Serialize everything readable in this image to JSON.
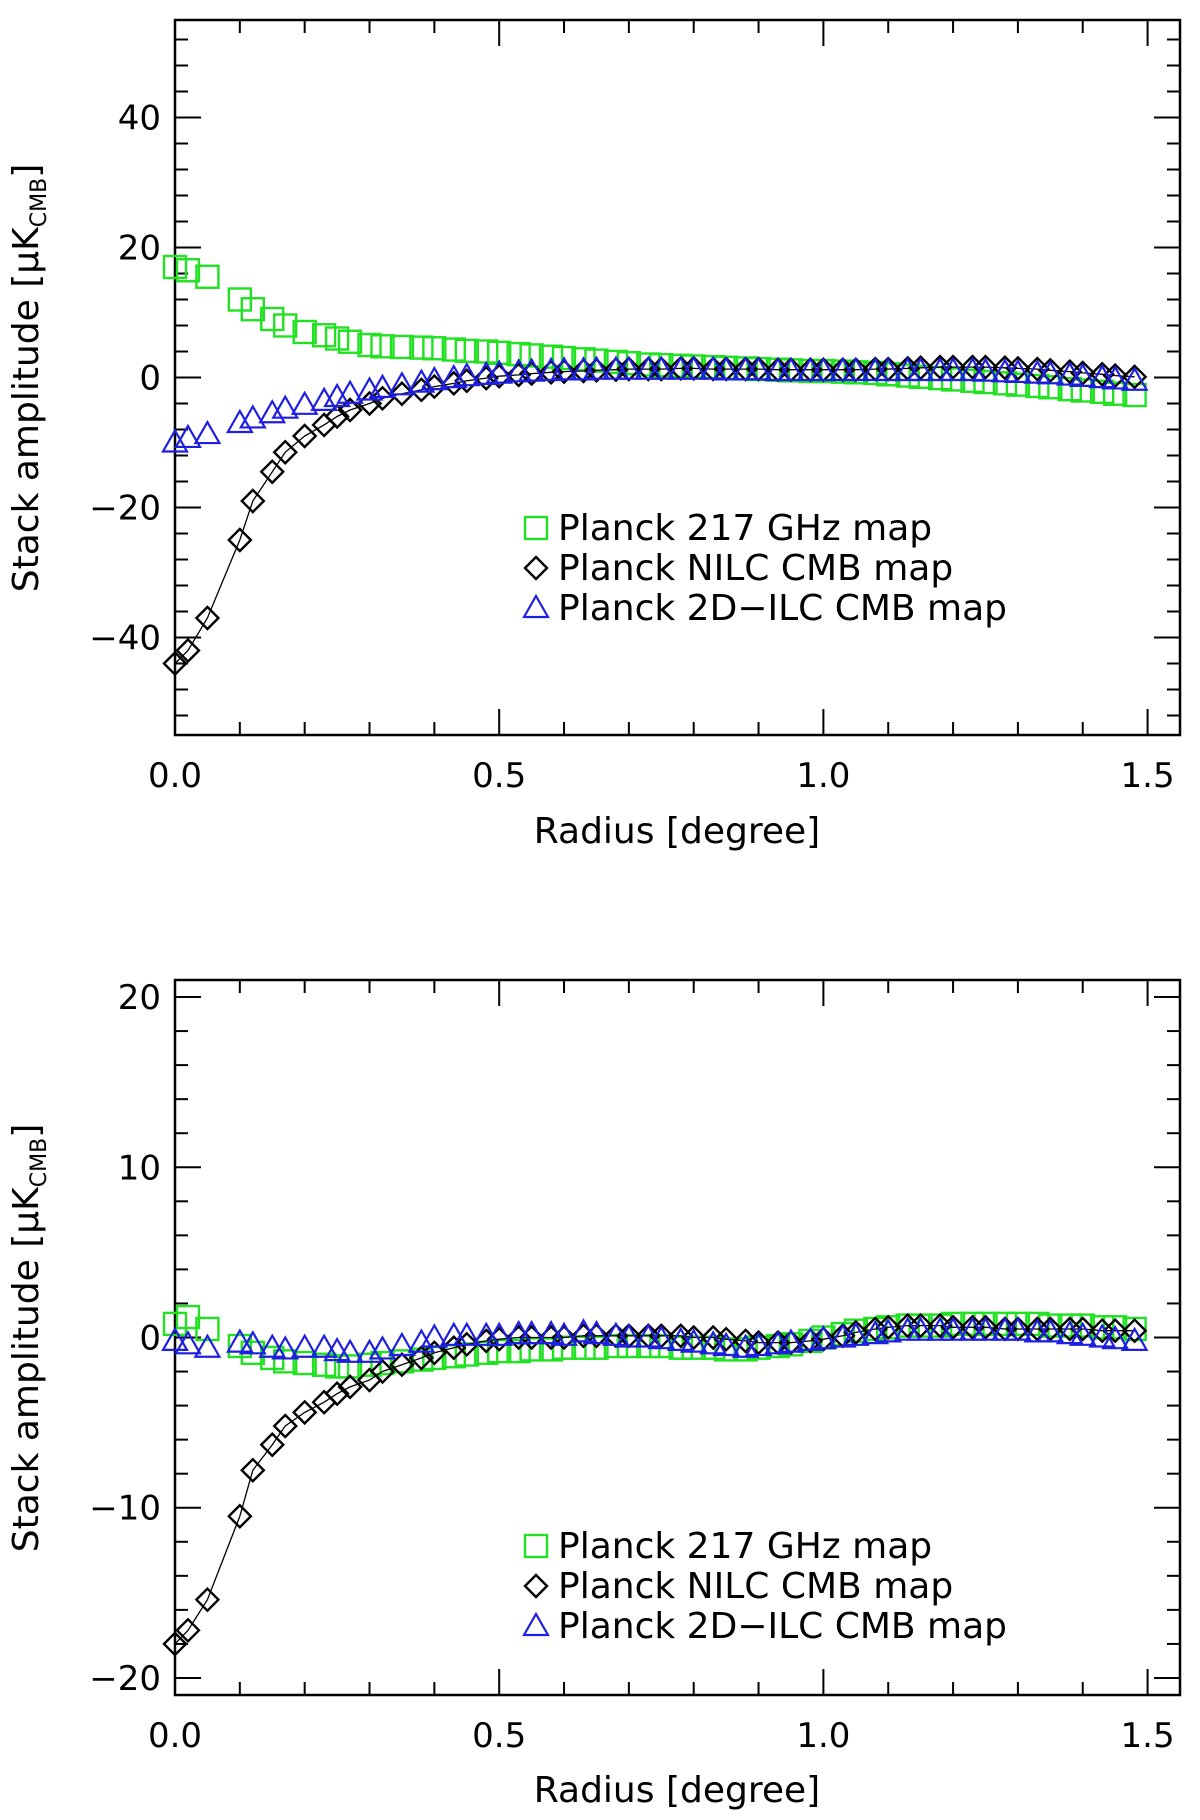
{
  "colors": {
    "green": "#22e122",
    "black": "#000000",
    "blue": "#1f1fe0",
    "frame": "#000000"
  },
  "chart_data": [
    {
      "type": "scatter",
      "xlabel": "Radius [degree]",
      "ylabel": "Stack amplitude [μK",
      "ylabel_sub": "CMB",
      "ylabel_close": "]",
      "xlim": [
        0.0,
        1.55
      ],
      "ylim": [
        -55,
        55
      ],
      "xticks": [
        0.0,
        0.5,
        1.0,
        1.5
      ],
      "xtick_labels": [
        "0.0",
        "0.5",
        "1.0",
        "1.5"
      ],
      "yticks": [
        -40,
        -20,
        0,
        20,
        40
      ],
      "ytick_labels": [
        "−40",
        "−20",
        "0",
        "20",
        "40"
      ],
      "x": [
        0.0,
        0.02,
        0.05,
        0.1,
        0.12,
        0.15,
        0.17,
        0.2,
        0.23,
        0.25,
        0.27,
        0.3,
        0.32,
        0.35,
        0.38,
        0.4,
        0.43,
        0.45,
        0.48,
        0.5,
        0.53,
        0.55,
        0.58,
        0.6,
        0.63,
        0.65,
        0.68,
        0.7,
        0.73,
        0.75,
        0.78,
        0.8,
        0.83,
        0.85,
        0.88,
        0.9,
        0.93,
        0.95,
        0.98,
        1.0,
        1.03,
        1.05,
        1.08,
        1.1,
        1.13,
        1.15,
        1.18,
        1.2,
        1.23,
        1.25,
        1.28,
        1.3,
        1.33,
        1.35,
        1.38,
        1.4,
        1.43,
        1.45,
        1.48
      ],
      "legend": [
        {
          "label": "Planck 217 GHz map",
          "marker": "square",
          "color": "#22e122"
        },
        {
          "label": "Planck NILC CMB map",
          "marker": "diamond",
          "color": "#000000"
        },
        {
          "label": "Planck 2D−ILC CMB map",
          "marker": "triangle",
          "color": "#1f1fe0"
        }
      ],
      "series": [
        {
          "name": "Planck 217 GHz map",
          "marker": "square",
          "color": "#22e122",
          "line": false,
          "values": [
            17.0,
            16.5,
            15.5,
            12.0,
            10.5,
            9.0,
            8.0,
            7.0,
            6.5,
            6.0,
            5.5,
            5.0,
            4.8,
            4.7,
            4.6,
            4.5,
            4.3,
            4.1,
            4.0,
            3.8,
            3.6,
            3.4,
            3.2,
            3.0,
            2.8,
            2.6,
            2.4,
            2.2,
            2.0,
            1.9,
            1.8,
            1.7,
            1.6,
            1.5,
            1.4,
            1.3,
            1.2,
            1.1,
            1.0,
            1.0,
            0.9,
            0.8,
            0.7,
            0.5,
            0.3,
            0.1,
            -0.1,
            -0.3,
            -0.5,
            -0.7,
            -0.9,
            -1.1,
            -1.3,
            -1.5,
            -1.8,
            -2.0,
            -2.2,
            -2.5,
            -2.7
          ]
        },
        {
          "name": "Planck NILC CMB map",
          "marker": "diamond",
          "color": "#000000",
          "line": true,
          "values": [
            -44.0,
            -42.0,
            -37.0,
            -25.0,
            -19.0,
            -14.5,
            -11.5,
            -9.0,
            -7.3,
            -6.0,
            -5.0,
            -4.0,
            -3.2,
            -2.5,
            -1.9,
            -1.4,
            -0.9,
            -0.5,
            -0.1,
            0.2,
            0.4,
            0.6,
            0.8,
            0.9,
            1.0,
            1.1,
            1.2,
            1.3,
            1.3,
            1.3,
            1.4,
            1.4,
            1.3,
            1.3,
            1.3,
            1.3,
            1.2,
            1.2,
            1.2,
            1.2,
            1.2,
            1.2,
            1.3,
            1.3,
            1.4,
            1.5,
            1.6,
            1.6,
            1.6,
            1.6,
            1.5,
            1.4,
            1.3,
            1.1,
            0.9,
            0.7,
            0.5,
            0.3,
            0.1
          ]
        },
        {
          "name": "Planck 2D−ILC CMB map",
          "marker": "triangle",
          "color": "#1f1fe0",
          "line": false,
          "values": [
            -10.0,
            -9.3,
            -8.7,
            -7.0,
            -6.3,
            -5.5,
            -4.8,
            -4.2,
            -3.6,
            -3.0,
            -2.5,
            -2.0,
            -1.6,
            -1.2,
            -0.8,
            -0.4,
            -0.1,
            0.2,
            0.4,
            0.6,
            0.8,
            0.9,
            1.0,
            1.1,
            1.1,
            1.2,
            1.2,
            1.2,
            1.2,
            1.2,
            1.2,
            1.2,
            1.2,
            1.1,
            1.1,
            1.1,
            1.0,
            1.0,
            1.0,
            1.0,
            1.0,
            1.0,
            1.0,
            1.0,
            1.0,
            1.0,
            1.0,
            1.0,
            1.0,
            0.9,
            0.8,
            0.7,
            0.6,
            0.5,
            0.3,
            0.1,
            -0.1,
            -0.3,
            -0.5
          ]
        }
      ]
    },
    {
      "type": "scatter",
      "xlabel": "Radius [degree]",
      "ylabel": "Stack amplitude [μK",
      "ylabel_sub": "CMB",
      "ylabel_close": "]",
      "xlim": [
        0.0,
        1.55
      ],
      "ylim": [
        -21,
        21
      ],
      "xticks": [
        0.0,
        0.5,
        1.0,
        1.5
      ],
      "xtick_labels": [
        "0.0",
        "0.5",
        "1.0",
        "1.5"
      ],
      "yticks": [
        -20,
        -10,
        0,
        10,
        20
      ],
      "ytick_labels": [
        "−20",
        "−10",
        "0",
        "10",
        "20"
      ],
      "x": [
        0.0,
        0.02,
        0.05,
        0.1,
        0.12,
        0.15,
        0.17,
        0.2,
        0.23,
        0.25,
        0.27,
        0.3,
        0.32,
        0.35,
        0.38,
        0.4,
        0.43,
        0.45,
        0.48,
        0.5,
        0.53,
        0.55,
        0.58,
        0.6,
        0.63,
        0.65,
        0.68,
        0.7,
        0.73,
        0.75,
        0.78,
        0.8,
        0.83,
        0.85,
        0.88,
        0.9,
        0.93,
        0.95,
        0.98,
        1.0,
        1.03,
        1.05,
        1.08,
        1.1,
        1.13,
        1.15,
        1.18,
        1.2,
        1.23,
        1.25,
        1.28,
        1.3,
        1.33,
        1.35,
        1.38,
        1.4,
        1.43,
        1.45,
        1.48
      ],
      "legend": [
        {
          "label": "Planck 217 GHz map",
          "marker": "square",
          "color": "#22e122"
        },
        {
          "label": "Planck NILC CMB map",
          "marker": "diamond",
          "color": "#000000"
        },
        {
          "label": "Planck 2D−ILC CMB map",
          "marker": "triangle",
          "color": "#1f1fe0"
        }
      ],
      "series": [
        {
          "name": "Planck 217 GHz map",
          "marker": "square",
          "color": "#22e122",
          "line": false,
          "values": [
            0.8,
            1.2,
            0.5,
            -0.5,
            -0.9,
            -1.2,
            -1.4,
            -1.5,
            -1.6,
            -1.7,
            -1.7,
            -1.6,
            -1.5,
            -1.4,
            -1.3,
            -1.2,
            -1.1,
            -1.0,
            -0.9,
            -0.8,
            -0.8,
            -0.7,
            -0.7,
            -0.6,
            -0.6,
            -0.6,
            -0.5,
            -0.5,
            -0.5,
            -0.5,
            -0.6,
            -0.6,
            -0.6,
            -0.7,
            -0.7,
            -0.6,
            -0.5,
            -0.4,
            -0.2,
            0.0,
            0.2,
            0.4,
            0.5,
            0.6,
            0.7,
            0.7,
            0.7,
            0.8,
            0.8,
            0.8,
            0.8,
            0.8,
            0.8,
            0.7,
            0.7,
            0.7,
            0.6,
            0.6,
            0.5
          ]
        },
        {
          "name": "Planck NILC CMB map",
          "marker": "diamond",
          "color": "#000000",
          "line": true,
          "values": [
            -18.0,
            -17.2,
            -15.4,
            -10.5,
            -7.8,
            -6.3,
            -5.2,
            -4.4,
            -3.8,
            -3.3,
            -2.9,
            -2.5,
            -2.0,
            -1.6,
            -1.2,
            -0.9,
            -0.6,
            -0.4,
            -0.2,
            -0.1,
            0.0,
            0.0,
            0.0,
            0.0,
            0.1,
            0.1,
            0.1,
            0.1,
            0.1,
            0.1,
            0.1,
            0.0,
            0.0,
            -0.1,
            -0.2,
            -0.3,
            -0.3,
            -0.3,
            -0.2,
            -0.1,
            0.1,
            0.3,
            0.5,
            0.6,
            0.7,
            0.7,
            0.7,
            0.6,
            0.6,
            0.6,
            0.5,
            0.5,
            0.5,
            0.5,
            0.5,
            0.5,
            0.4,
            0.4,
            0.4
          ]
        },
        {
          "name": "Planck 2D−ILC CMB map",
          "marker": "triangle",
          "color": "#1f1fe0",
          "line": false,
          "values": [
            -0.2,
            -0.4,
            -0.6,
            -0.3,
            -0.4,
            -0.6,
            -0.7,
            -0.6,
            -0.6,
            -0.8,
            -0.9,
            -0.9,
            -0.7,
            -0.5,
            -0.3,
            0.0,
            0.1,
            0.1,
            0.1,
            0.1,
            0.2,
            0.2,
            0.2,
            0.1,
            0.3,
            0.2,
            0.1,
            0.0,
            0.0,
            -0.1,
            -0.2,
            -0.3,
            -0.4,
            -0.5,
            -0.6,
            -0.5,
            -0.4,
            -0.3,
            -0.2,
            -0.1,
            0.0,
            0.1,
            0.2,
            0.3,
            0.4,
            0.4,
            0.4,
            0.4,
            0.4,
            0.4,
            0.4,
            0.4,
            0.3,
            0.3,
            0.2,
            0.1,
            0.0,
            -0.1,
            -0.2
          ]
        }
      ]
    }
  ]
}
